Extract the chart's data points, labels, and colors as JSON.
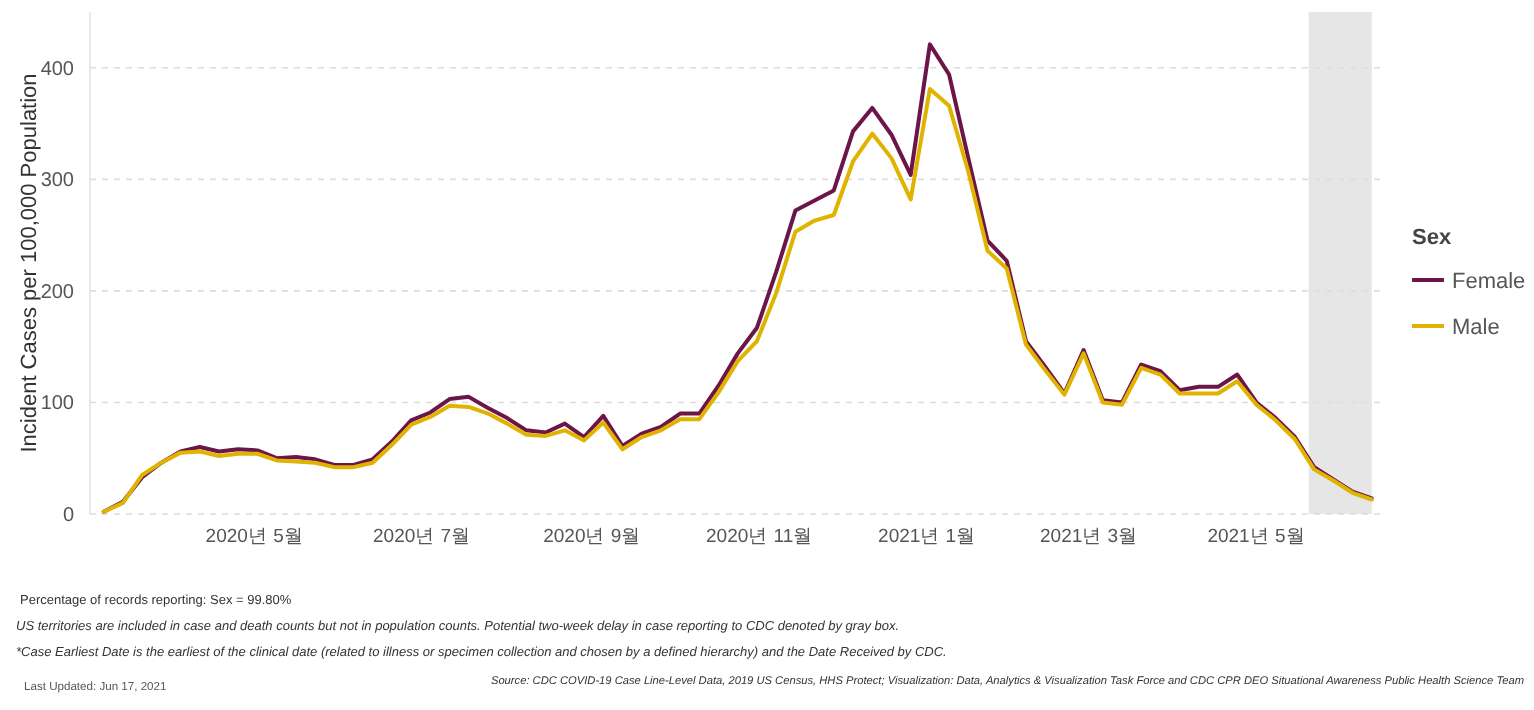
{
  "chart_data": {
    "type": "line",
    "ylabel": "Incident Cases per 100,000 Population",
    "legend_title": "Sex",
    "x": [
      "2020-03-07",
      "2020-03-14",
      "2020-03-21",
      "2020-03-28",
      "2020-04-04",
      "2020-04-11",
      "2020-04-18",
      "2020-04-25",
      "2020-05-02",
      "2020-05-09",
      "2020-05-16",
      "2020-05-23",
      "2020-05-30",
      "2020-06-06",
      "2020-06-13",
      "2020-06-20",
      "2020-06-27",
      "2020-07-04",
      "2020-07-11",
      "2020-07-18",
      "2020-07-25",
      "2020-08-01",
      "2020-08-08",
      "2020-08-15",
      "2020-08-22",
      "2020-08-29",
      "2020-09-05",
      "2020-09-12",
      "2020-09-19",
      "2020-09-26",
      "2020-10-03",
      "2020-10-10",
      "2020-10-17",
      "2020-10-24",
      "2020-10-31",
      "2020-11-07",
      "2020-11-14",
      "2020-11-21",
      "2020-11-28",
      "2020-12-05",
      "2020-12-12",
      "2020-12-19",
      "2020-12-26",
      "2021-01-02",
      "2021-01-09",
      "2021-01-16",
      "2021-01-23",
      "2021-01-30",
      "2021-02-06",
      "2021-02-13",
      "2021-02-20",
      "2021-02-27",
      "2021-03-06",
      "2021-03-13",
      "2021-03-20",
      "2021-03-27",
      "2021-04-03",
      "2021-04-10",
      "2021-04-17",
      "2021-04-24",
      "2021-05-01",
      "2021-05-08",
      "2021-05-15",
      "2021-05-22",
      "2021-05-29",
      "2021-06-05",
      "2021-06-12"
    ],
    "series": [
      {
        "name": "Female",
        "color": "#6b1548",
        "values": [
          2,
          11,
          33,
          46,
          56,
          60,
          56,
          58,
          57,
          50,
          51,
          49,
          44,
          44,
          49,
          65,
          84,
          91,
          103,
          105,
          95,
          86,
          75,
          73,
          81,
          69,
          88,
          61,
          72,
          78,
          90,
          90,
          115,
          144,
          167,
          217,
          272,
          281,
          290,
          343,
          364,
          340,
          304,
          421,
          394,
          319,
          245,
          227,
          155,
          132,
          108,
          147,
          102,
          100,
          134,
          128,
          111,
          114,
          114,
          125,
          100,
          86,
          69,
          42,
          31,
          20,
          14
        ]
      },
      {
        "name": "Male",
        "color": "#e0b300",
        "values": [
          2,
          10,
          35,
          46,
          55,
          56,
          52,
          54,
          54,
          48,
          47,
          46,
          42,
          42,
          46,
          62,
          80,
          87,
          97,
          96,
          90,
          81,
          71,
          70,
          75,
          66,
          82,
          58,
          69,
          75,
          85,
          85,
          109,
          137,
          155,
          198,
          253,
          263,
          268,
          316,
          341,
          319,
          282,
          381,
          366,
          307,
          236,
          220,
          152,
          129,
          107,
          144,
          100,
          98,
          131,
          125,
          108,
          108,
          108,
          119,
          98,
          84,
          67,
          40,
          30,
          19,
          13
        ]
      }
    ],
    "xlim": [
      "2020-03-02",
      "2021-06-15"
    ],
    "ylim": [
      0,
      450
    ],
    "yticks": [
      0,
      100,
      200,
      300,
      400
    ],
    "xticks": [
      {
        "value": "2020-05-01",
        "label": "2020년 5월"
      },
      {
        "value": "2020-07-01",
        "label": "2020년 7월"
      },
      {
        "value": "2020-09-01",
        "label": "2020년 9월"
      },
      {
        "value": "2020-11-01",
        "label": "2020년 11월"
      },
      {
        "value": "2021-01-01",
        "label": "2021년 1월"
      },
      {
        "value": "2021-03-01",
        "label": "2021년 3월"
      },
      {
        "value": "2021-05-01",
        "label": "2021년 5월"
      }
    ],
    "bands": [
      {
        "axis": "x",
        "from": "2021-05-20",
        "to": "2021-06-12",
        "color": "#e6e6e6"
      }
    ],
    "grid": "y",
    "legend": "right",
    "line_style": "solid",
    "annotations": [
      "Percentage of records reporting: Sex = 99.80%",
      "US territories are included in case and death counts but not in population counts. Potential two-week delay in case reporting to CDC denoted by gray box.",
      "*Case Earliest Date is the earliest of the clinical date (related to illness or specimen collection and chosen by a defined hierarchy) and the Date Received by CDC.",
      "Last Updated: Jun 17, 2021",
      "Source: CDC COVID-19 Case Line-Level Data, 2019 US Census, HHS Protect; Visualization: Data, Analytics & Visualization Task Force and CDC CPR DEO Situational Awareness Public Health Science Team"
    ]
  }
}
